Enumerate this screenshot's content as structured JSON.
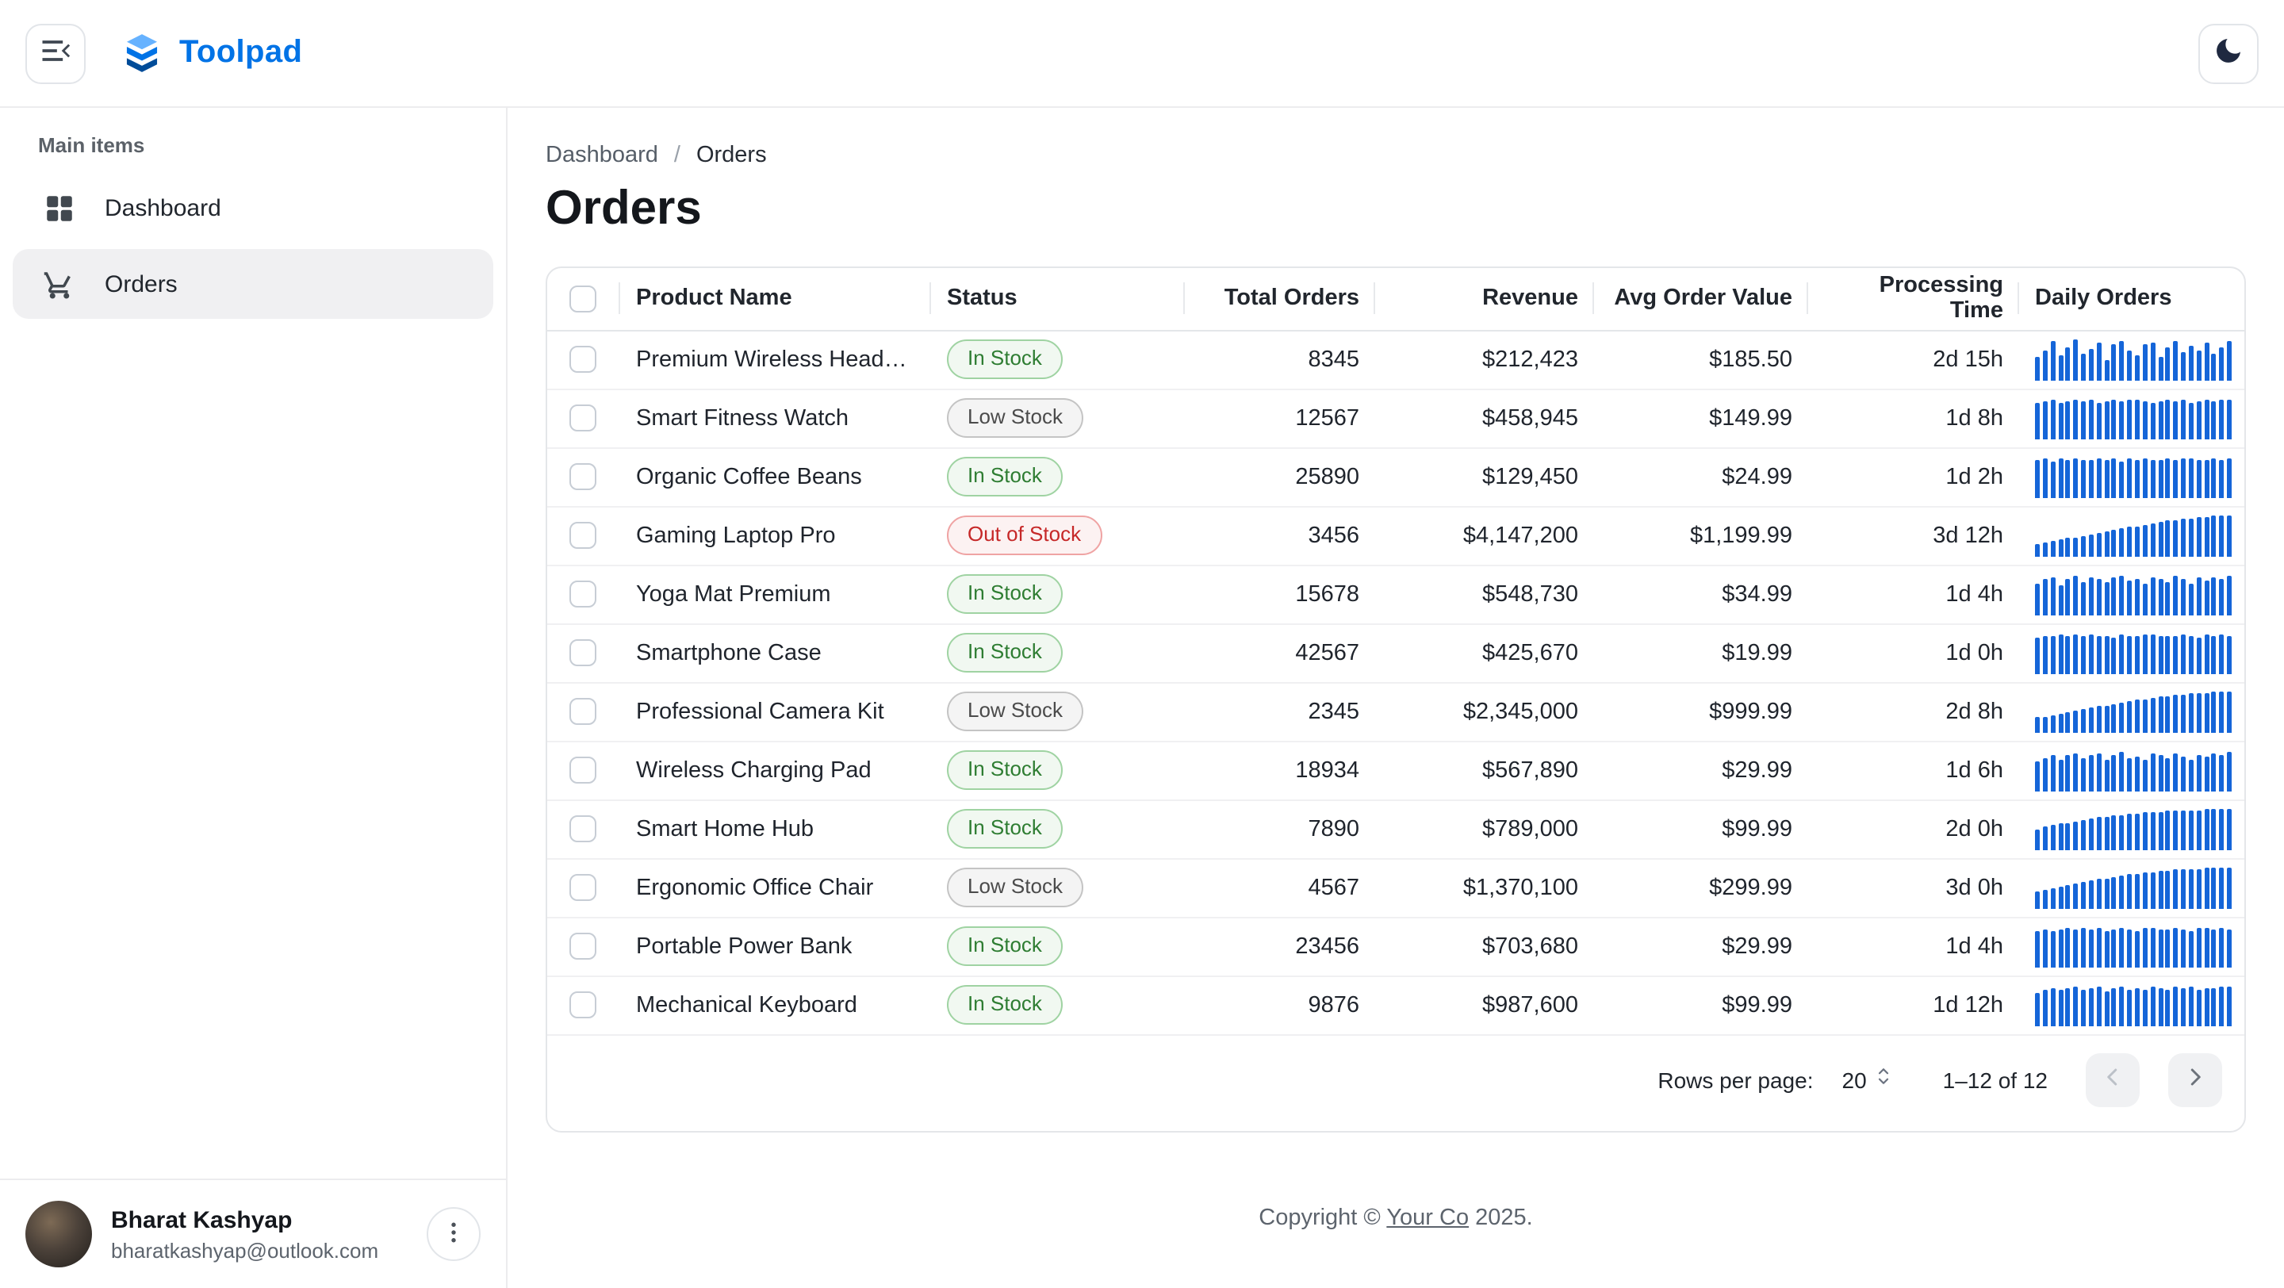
{
  "colors": {
    "brand": "#0073e6",
    "spark": "#1565d8",
    "in_stock_text": "#2e7d32",
    "in_stock_bg": "#f1f8f1",
    "in_stock_border": "#9fd3a2",
    "low_stock_text": "#4b4b4b",
    "low_stock_bg": "#f4f4f4",
    "low_stock_border": "#c4c4c4",
    "out_of_stock_text": "#c62828",
    "out_of_stock_bg": "#fcf2f2",
    "out_of_stock_border": "#efa3a3"
  },
  "header": {
    "app_title": "Toolpad"
  },
  "sidebar": {
    "section_label": "Main items",
    "items": [
      {
        "label": "Dashboard",
        "icon": "dashboard-icon",
        "selected": false
      },
      {
        "label": "Orders",
        "icon": "cart-icon",
        "selected": true
      }
    ],
    "user": {
      "name": "Bharat Kashyap",
      "email": "bharatkashyap@outlook.com"
    }
  },
  "breadcrumb": {
    "link": "Dashboard",
    "separator": "/",
    "current": "Orders"
  },
  "page": {
    "title": "Orders"
  },
  "table": {
    "columns": [
      "Product Name",
      "Status",
      "Total Orders",
      "Revenue",
      "Avg Order Value",
      "Processing Time",
      "Daily Orders"
    ],
    "rows": [
      {
        "name": "Premium Wireless Headp…",
        "status": "In Stock",
        "total_orders": "8345",
        "revenue": "$212,423",
        "avg_order_value": "$185.50",
        "processing_time": "2d 15h",
        "spark": [
          55,
          70,
          95,
          60,
          80,
          100,
          65,
          75,
          90,
          50,
          85,
          95,
          70,
          60,
          88,
          92,
          55,
          78,
          96,
          68,
          84,
          72,
          90,
          64,
          80,
          95
        ]
      },
      {
        "name": "Smart Fitness Watch",
        "status": "Low Stock",
        "total_orders": "12567",
        "revenue": "$458,945",
        "avg_order_value": "$149.99",
        "processing_time": "1d 8h",
        "spark": [
          85,
          90,
          95,
          88,
          92,
          96,
          90,
          94,
          88,
          91,
          95,
          89,
          93,
          96,
          90,
          87,
          92,
          95,
          91,
          94,
          88,
          92,
          96,
          90,
          93,
          95
        ]
      },
      {
        "name": "Organic Coffee Beans",
        "status": "In Stock",
        "total_orders": "25890",
        "revenue": "$129,450",
        "avg_order_value": "$24.99",
        "processing_time": "1d 2h",
        "spark": [
          90,
          93,
          88,
          95,
          91,
          94,
          89,
          92,
          96,
          90,
          93,
          88,
          94,
          91,
          95,
          89,
          92,
          95,
          90,
          93,
          96,
          89,
          92,
          94,
          90,
          95
        ]
      },
      {
        "name": "Gaming Laptop Pro",
        "status": "Out of Stock",
        "total_orders": "3456",
        "revenue": "$4,147,200",
        "avg_order_value": "$1,199.99",
        "processing_time": "3d 12h",
        "spark": [
          30,
          33,
          36,
          40,
          43,
          46,
          50,
          53,
          56,
          60,
          63,
          66,
          70,
          73,
          76,
          80,
          83,
          86,
          88,
          90,
          92,
          94,
          96,
          97,
          98,
          100
        ]
      },
      {
        "name": "Yoga Mat Premium",
        "status": "In Stock",
        "total_orders": "15678",
        "revenue": "$548,730",
        "avg_order_value": "$34.99",
        "processing_time": "1d 4h",
        "spark": [
          75,
          85,
          90,
          70,
          88,
          95,
          80,
          92,
          85,
          78,
          90,
          96,
          82,
          88,
          75,
          92,
          86,
          80,
          94,
          88,
          76,
          90,
          84,
          92,
          86,
          95
        ]
      },
      {
        "name": "Smartphone Case",
        "status": "In Stock",
        "total_orders": "42567",
        "revenue": "$425,670",
        "avg_order_value": "$19.99",
        "processing_time": "1d 0h",
        "spark": [
          88,
          92,
          90,
          94,
          89,
          93,
          91,
          95,
          90,
          92,
          88,
          94,
          91,
          89,
          93,
          95,
          90,
          92,
          89,
          94,
          91,
          88,
          93,
          90,
          95,
          92
        ]
      },
      {
        "name": "Professional Camera Kit",
        "status": "Low Stock",
        "total_orders": "2345",
        "revenue": "$2,345,000",
        "avg_order_value": "$999.99",
        "processing_time": "2d 8h",
        "spark": [
          35,
          38,
          42,
          45,
          48,
          52,
          55,
          58,
          62,
          65,
          68,
          72,
          75,
          78,
          80,
          83,
          85,
          88,
          90,
          92,
          93,
          95,
          96,
          97,
          98,
          100
        ]
      },
      {
        "name": "Wireless Charging Pad",
        "status": "In Stock",
        "total_orders": "18934",
        "revenue": "$567,890",
        "avg_order_value": "$29.99",
        "processing_time": "1d 6h",
        "spark": [
          70,
          80,
          88,
          75,
          85,
          92,
          78,
          86,
          90,
          74,
          88,
          94,
          80,
          84,
          76,
          90,
          86,
          78,
          92,
          84,
          74,
          88,
          82,
          90,
          86,
          94
        ]
      },
      {
        "name": "Smart Home Hub",
        "status": "In Stock",
        "total_orders": "7890",
        "revenue": "$789,000",
        "avg_order_value": "$99.99",
        "processing_time": "2d 0h",
        "spark": [
          50,
          55,
          58,
          62,
          65,
          68,
          72,
          74,
          78,
          80,
          82,
          84,
          86,
          88,
          89,
          90,
          92,
          93,
          94,
          95,
          96,
          96,
          97,
          98,
          99,
          100
        ]
      },
      {
        "name": "Ergonomic Office Chair",
        "status": "Low Stock",
        "total_orders": "4567",
        "revenue": "$1,370,100",
        "avg_order_value": "$299.99",
        "processing_time": "3d 0h",
        "spark": [
          40,
          44,
          48,
          52,
          56,
          60,
          63,
          66,
          70,
          73,
          76,
          79,
          82,
          84,
          86,
          88,
          90,
          92,
          93,
          94,
          95,
          96,
          97,
          98,
          99,
          100
        ]
      },
      {
        "name": "Portable Power Bank",
        "status": "In Stock",
        "total_orders": "23456",
        "revenue": "$703,680",
        "avg_order_value": "$29.99",
        "processing_time": "1d 4h",
        "spark": [
          85,
          90,
          88,
          92,
          95,
          89,
          93,
          91,
          94,
          88,
          92,
          96,
          90,
          87,
          93,
          95,
          89,
          92,
          94,
          90,
          88,
          93,
          96,
          91,
          94,
          92
        ]
      },
      {
        "name": "Mechanical Keyboard",
        "status": "In Stock",
        "total_orders": "9876",
        "revenue": "$987,600",
        "avg_order_value": "$99.99",
        "processing_time": "1d 12h",
        "spark": [
          80,
          88,
          92,
          85,
          90,
          94,
          87,
          91,
          95,
          84,
          89,
          93,
          88,
          92,
          86,
          94,
          90,
          85,
          93,
          89,
          95,
          88,
          92,
          90,
          94,
          96
        ]
      }
    ]
  },
  "pagination": {
    "rows_per_page_label": "Rows per page:",
    "rows_per_page_value": "20",
    "range": "1–12 of 12"
  },
  "footer": {
    "prefix": "Copyright © ",
    "company": "Your Co",
    "suffix": " 2025."
  }
}
